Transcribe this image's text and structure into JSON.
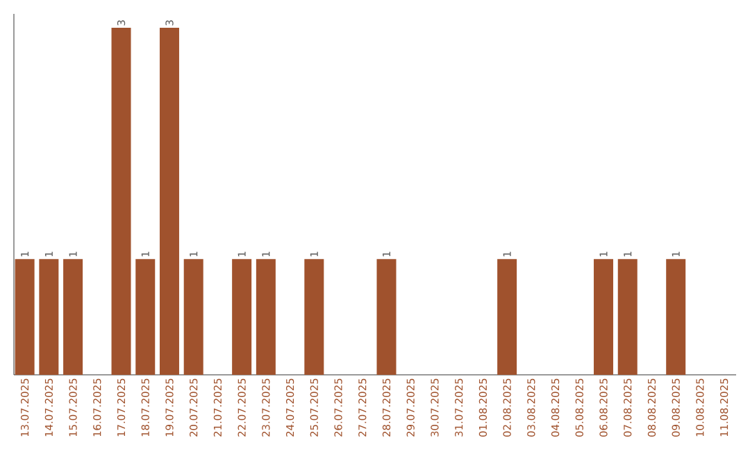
{
  "chart_data": {
    "type": "bar",
    "categories": [
      "13.07.2025",
      "14.07.2025",
      "15.07.2025",
      "16.07.2025",
      "17.07.2025",
      "18.07.2025",
      "19.07.2025",
      "20.07.2025",
      "21.07.2025",
      "22.07.2025",
      "23.07.2025",
      "24.07.2025",
      "25.07.2025",
      "26.07.2025",
      "27.07.2025",
      "28.07.2025",
      "29.07.2025",
      "30.07.2025",
      "31.07.2025",
      "01.08.2025",
      "02.08.2025",
      "03.08.2025",
      "04.08.2025",
      "05.08.2025",
      "06.08.2025",
      "07.08.2025",
      "08.08.2025",
      "09.08.2025",
      "10.08.2025",
      "11.08.2025"
    ],
    "values": [
      1,
      1,
      1,
      0,
      3,
      1,
      3,
      1,
      0,
      1,
      1,
      0,
      1,
      0,
      0,
      1,
      0,
      0,
      0,
      0,
      1,
      0,
      0,
      0,
      1,
      1,
      0,
      1,
      0,
      0
    ],
    "value_labels": [
      "1",
      "1",
      "1",
      null,
      "3",
      "1",
      "3",
      "1",
      null,
      "1",
      "1",
      null,
      "1",
      null,
      null,
      "1",
      null,
      null,
      null,
      null,
      "1",
      null,
      null,
      null,
      "1",
      "1",
      null,
      "1",
      null,
      null
    ],
    "color": "#a0522d",
    "tick_labels": "x"
  }
}
